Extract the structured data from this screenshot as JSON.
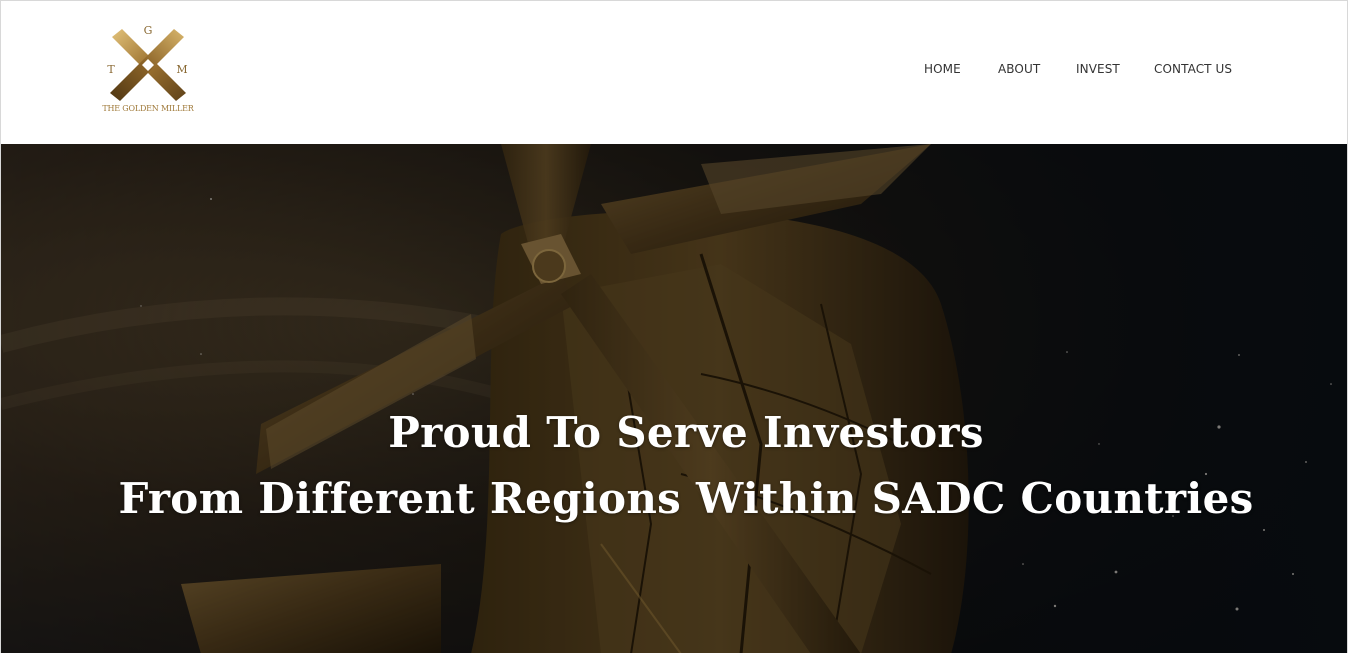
{
  "brand": {
    "monogram_top": "G",
    "monogram_left": "T",
    "monogram_right": "M",
    "name": "THE GOLDEN MILLER",
    "gold": "#a07a3a"
  },
  "nav": {
    "items": [
      {
        "label": "HOME"
      },
      {
        "label": "ABOUT"
      },
      {
        "label": "INVEST"
      },
      {
        "label": "CONTACT US"
      }
    ]
  },
  "hero": {
    "headline_line1": "Proud To Serve Investors",
    "headline_line2": "From Different Regions Within SADC Countries"
  }
}
